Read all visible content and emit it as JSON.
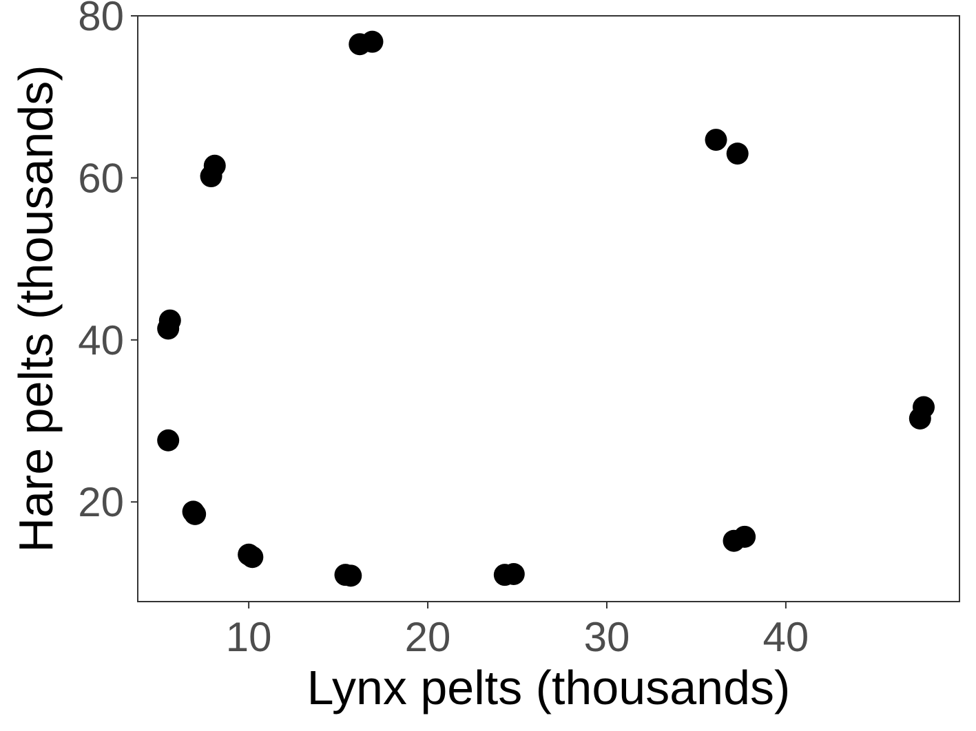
{
  "chart_data": {
    "type": "scatter",
    "title": "",
    "xlabel": "Lynx pelts (thousands)",
    "ylabel": "Hare pelts (thousands)",
    "xlim": [
      3.8,
      49.7
    ],
    "ylim": [
      7.7,
      80
    ],
    "xticks": [
      10,
      20,
      30,
      40
    ],
    "yticks": [
      20,
      40,
      60,
      80
    ],
    "xtick_labels": [
      "10",
      "20",
      "30",
      "40"
    ],
    "ytick_labels": [
      "20",
      "40",
      "60",
      "80"
    ],
    "grid": false,
    "legend": "none",
    "point_color": "#000000",
    "series": [
      {
        "x": [
          16.2,
          16.9,
          8.1,
          7.9,
          5.6,
          5.5,
          5.5,
          6.9,
          7.0,
          10.0,
          10.2,
          15.4,
          15.7,
          24.3,
          24.8,
          36.1,
          37.3,
          37.1,
          37.7,
          47.5,
          47.7
        ],
        "y": [
          76.5,
          76.8,
          61.5,
          60.2,
          42.4,
          41.4,
          27.6,
          18.8,
          18.5,
          13.5,
          13.2,
          11.0,
          10.9,
          11.0,
          11.1,
          64.7,
          63.0,
          15.2,
          15.7,
          30.3,
          31.7
        ]
      }
    ]
  }
}
